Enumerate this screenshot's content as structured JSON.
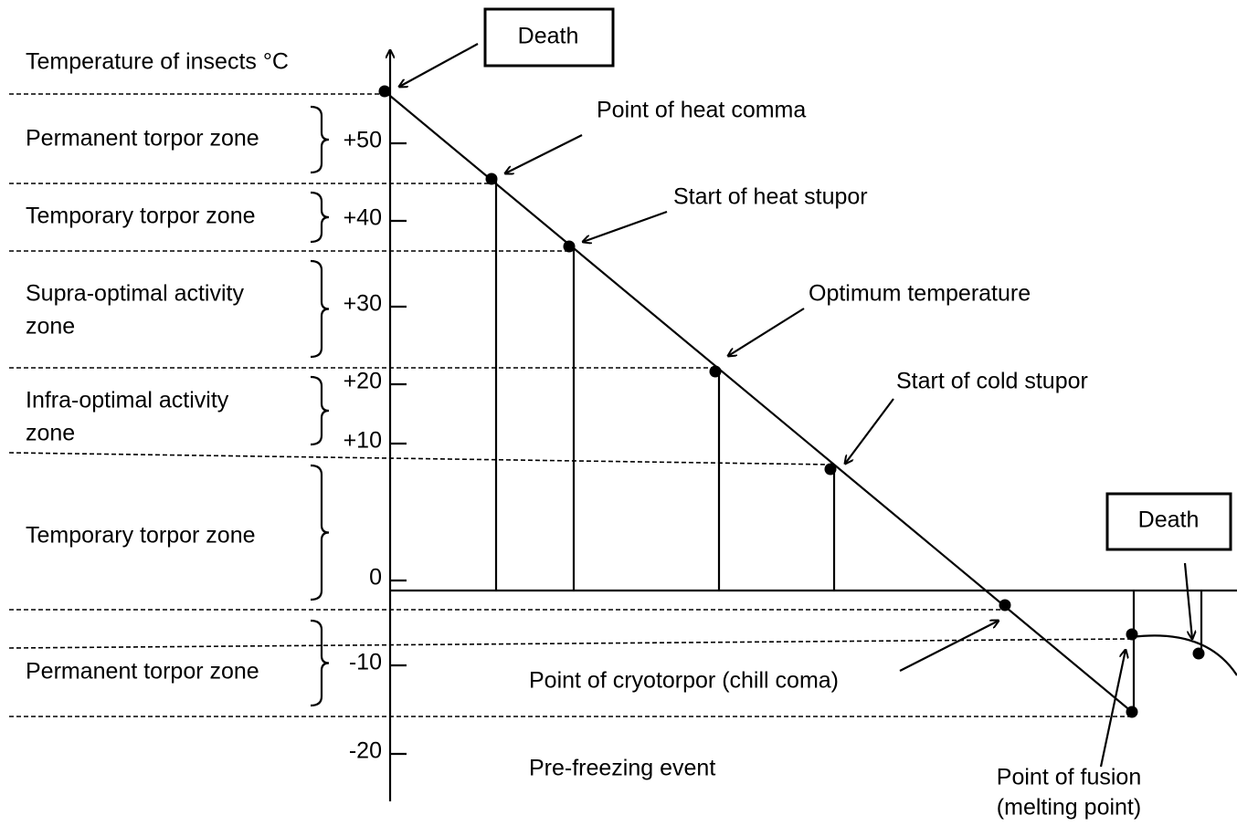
{
  "axis_title": "Temperature of insects °C",
  "ticks": [
    "+50",
    "+40",
    "+30",
    "+20",
    "+10",
    "0",
    "-10",
    "-20"
  ],
  "zones": [
    {
      "lines": [
        "Permanent torpor zone"
      ]
    },
    {
      "lines": [
        "Temporary torpor zone"
      ]
    },
    {
      "lines": [
        "Supra-optimal activity",
        "zone"
      ]
    },
    {
      "lines": [
        "Infra-optimal activity",
        "zone"
      ]
    },
    {
      "lines": [
        "Temporary torpor zone"
      ]
    },
    {
      "lines": [
        "Permanent torpor zone"
      ]
    }
  ],
  "death_boxes": [
    "Death",
    "Death"
  ],
  "point_labels": [
    "Point of heat comma",
    "Start of heat stupor",
    "Optimum temperature",
    "Start of cold stupor",
    "Point of cryotorpor (chill coma)",
    "Pre-freezing event"
  ],
  "fusion_label": [
    "Point of fusion",
    "(melting point)"
  ]
}
